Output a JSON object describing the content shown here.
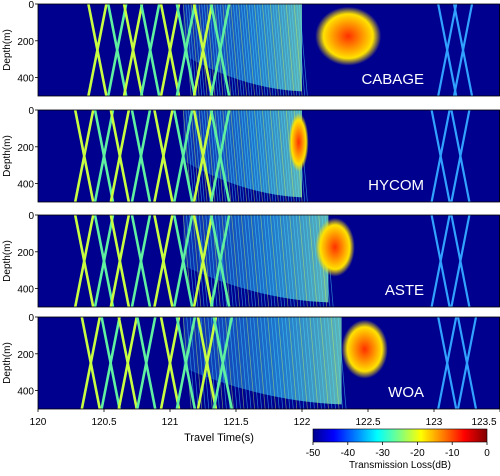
{
  "chart_data": {
    "type": "heatmap",
    "x_ticks": [
      120,
      120.5,
      121,
      121.5,
      122,
      122.5,
      123,
      123.5
    ],
    "xlim": [
      120,
      123.5
    ],
    "xlabel": "Travel Time(s)",
    "ylabel": "Depth(m)",
    "y_ticks": [
      0,
      200,
      400
    ],
    "ylim": [
      0,
      500
    ],
    "y_inverted": true,
    "panels": [
      {
        "label": "CABAGE",
        "arrival_lines_s": [
          120.45,
          120.6,
          120.72,
          120.85,
          121.0,
          121.12,
          121.25,
          121.38,
          123.1,
          123.22
        ],
        "dense_end_s": 122.0,
        "hot_zone_s": [
          122.1,
          122.6
        ]
      },
      {
        "label": "HYCOM",
        "arrival_lines_s": [
          120.35,
          120.5,
          120.62,
          120.78,
          120.95,
          121.1,
          121.25,
          121.38,
          123.05,
          123.2
        ],
        "dense_end_s": 122.0,
        "hot_zone_s": [
          121.9,
          122.05
        ]
      },
      {
        "label": "ASTE",
        "arrival_lines_s": [
          120.35,
          120.5,
          120.62,
          120.78,
          120.95,
          121.1,
          121.25,
          121.38,
          123.05,
          123.2
        ],
        "dense_end_s": 122.2,
        "hot_zone_s": [
          122.1,
          122.4
        ]
      },
      {
        "label": "WOA",
        "arrival_lines_s": [
          120.4,
          120.55,
          120.68,
          120.82,
          121.0,
          121.12,
          121.28,
          121.4,
          123.1,
          123.25
        ],
        "dense_end_s": 122.3,
        "hot_zone_s": [
          122.3,
          122.65
        ]
      }
    ],
    "colorbar": {
      "label": "Transmission Loss(dB)",
      "ticks": [
        -50,
        -40,
        -30,
        -20,
        -10,
        0
      ],
      "range": [
        -50,
        0
      ],
      "colormap": "jet"
    }
  }
}
